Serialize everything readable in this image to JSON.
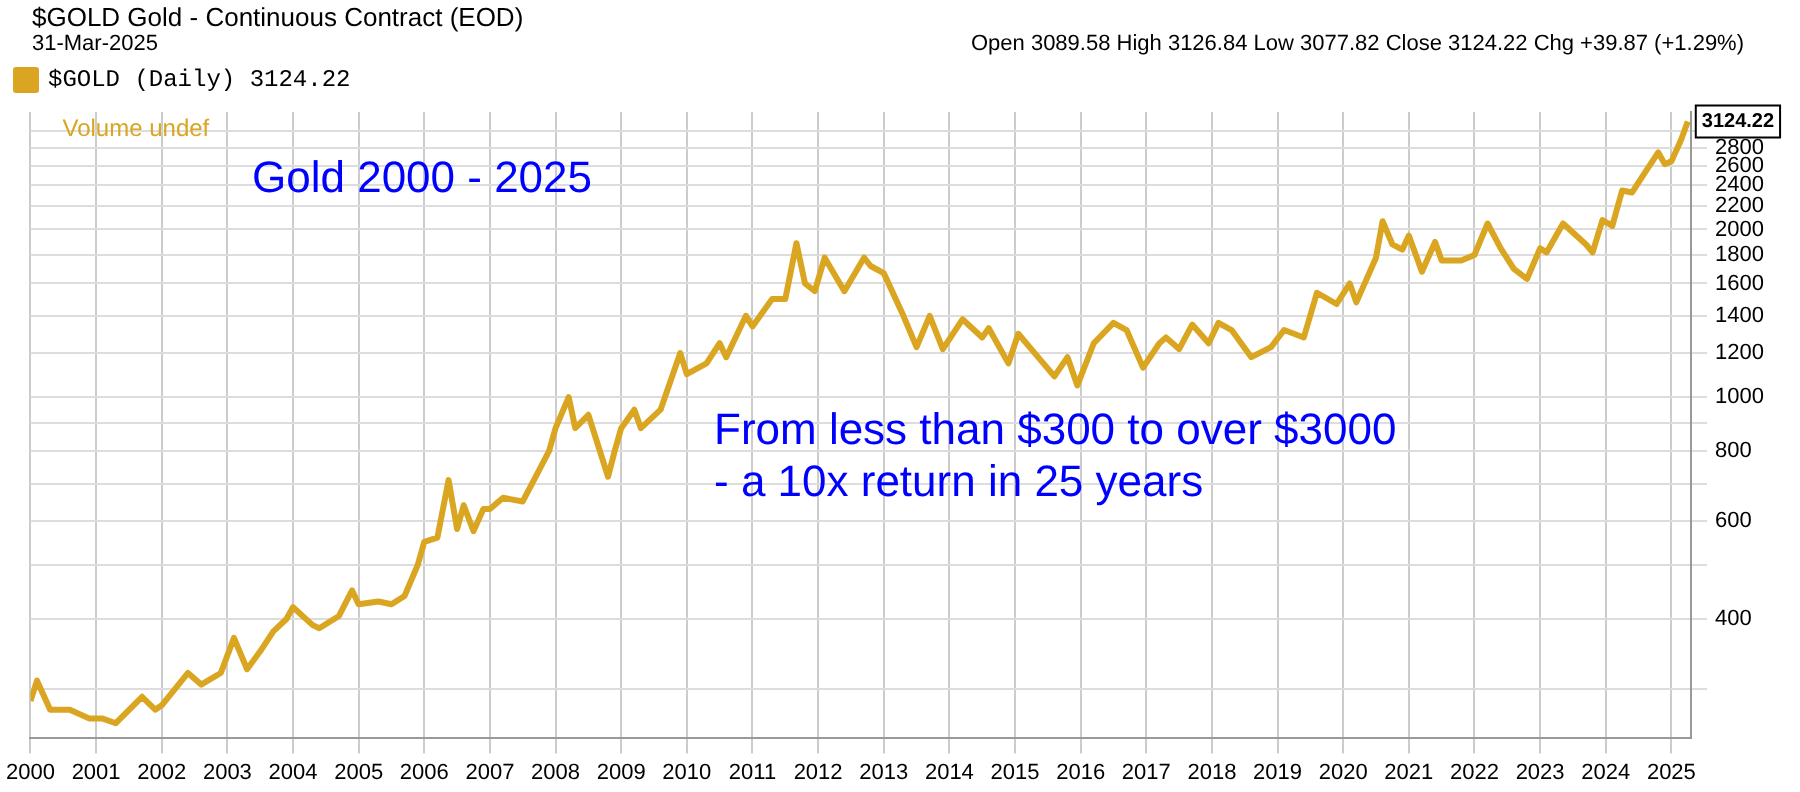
{
  "chart_data": {
    "type": "line",
    "title": "$GOLD Gold - Continuous Contract (EOD)",
    "subtitle": "31-Mar-2025",
    "annotations": [
      "Open 3089.58 High 3126.84 Low 3077.82 Close 3124.22 Chg +39.87 (+1.29%)",
      "Volume undef",
      "Gold 2000 - 2025",
      "From less than $300 to over $3000\n- a 10x return in 25 years",
      {
        "text": "3124.22",
        "x": 2025.25,
        "y": 3124.22
      }
    ],
    "log": "y",
    "grid": true,
    "legend": "top left",
    "marker": "none",
    "line_style": "solid",
    "xlim": [
      2000,
      2025.3
    ],
    "xticks": [
      2000,
      2001,
      2002,
      2003,
      2004,
      2005,
      2006,
      2007,
      2008,
      2009,
      2010,
      2011,
      2012,
      2013,
      2014,
      2015,
      2016,
      2017,
      2018,
      2019,
      2020,
      2021,
      2022,
      2023,
      2024,
      2025
    ],
    "ylim": [
      245,
      3250
    ],
    "yticks": [
      {
        "value": 300,
        "label": null
      },
      400,
      {
        "value": 500,
        "label": null
      },
      600,
      {
        "value": 700,
        "label": null
      },
      800,
      {
        "value": 900,
        "label": null
      },
      1000,
      1200,
      1400,
      1600,
      1800,
      2000,
      2200,
      2400,
      2600,
      2800,
      {
        "value": 3000,
        "label": null
      }
    ],
    "series": [
      {
        "name": "$GOLD (Daily) 3124.22",
        "color": "#daa520",
        "x": [
          2000.0,
          2000.1,
          2000.3,
          2000.6,
          2000.9,
          2001.1,
          2001.3,
          2001.7,
          2001.9,
          2002.0,
          2002.4,
          2002.6,
          2002.9,
          2003.1,
          2003.3,
          2003.5,
          2003.7,
          2003.9,
          2004.0,
          2004.3,
          2004.4,
          2004.7,
          2004.9,
          2005.0,
          2005.3,
          2005.5,
          2005.7,
          2005.9,
          2006.0,
          2006.2,
          2006.37,
          2006.5,
          2006.6,
          2006.75,
          2006.9,
          2007.0,
          2007.2,
          2007.5,
          2007.75,
          2007.9,
          2008.0,
          2008.2,
          2008.3,
          2008.5,
          2008.8,
          2008.9,
          2009.0,
          2009.2,
          2009.3,
          2009.6,
          2009.9,
          2010.0,
          2010.3,
          2010.5,
          2010.6,
          2010.9,
          2011.0,
          2011.3,
          2011.5,
          2011.67,
          2011.8,
          2011.95,
          2012.1,
          2012.4,
          2012.7,
          2012.8,
          2013.0,
          2013.3,
          2013.5,
          2013.7,
          2013.9,
          2014.2,
          2014.5,
          2014.6,
          2014.9,
          2015.05,
          2015.3,
          2015.6,
          2015.8,
          2015.95,
          2016.2,
          2016.5,
          2016.7,
          2016.95,
          2017.2,
          2017.3,
          2017.5,
          2017.7,
          2017.95,
          2018.1,
          2018.3,
          2018.6,
          2018.9,
          2019.1,
          2019.4,
          2019.6,
          2019.9,
          2020.1,
          2020.2,
          2020.5,
          2020.6,
          2020.75,
          2020.9,
          2021.0,
          2021.2,
          2021.4,
          2021.5,
          2021.8,
          2022.0,
          2022.2,
          2022.4,
          2022.6,
          2022.8,
          2023.0,
          2023.1,
          2023.35,
          2023.7,
          2023.8,
          2023.95,
          2024.1,
          2024.25,
          2024.4,
          2024.5,
          2024.8,
          2024.9,
          2025.0,
          2025.15,
          2025.25
        ],
        "values": [
          285,
          310,
          275,
          275,
          265,
          265,
          260,
          290,
          275,
          280,
          320,
          305,
          320,
          370,
          325,
          350,
          380,
          400,
          420,
          390,
          385,
          405,
          450,
          425,
          430,
          425,
          440,
          500,
          550,
          560,
          710,
          580,
          640,
          575,
          630,
          630,
          660,
          650,
          740,
          800,
          880,
          1000,
          880,
          930,
          720,
          800,
          880,
          950,
          880,
          950,
          1200,
          1100,
          1150,
          1250,
          1180,
          1400,
          1340,
          1500,
          1500,
          1890,
          1600,
          1550,
          1780,
          1550,
          1780,
          1720,
          1670,
          1400,
          1230,
          1400,
          1220,
          1380,
          1280,
          1330,
          1150,
          1300,
          1200,
          1090,
          1180,
          1050,
          1250,
          1360,
          1320,
          1130,
          1250,
          1280,
          1220,
          1350,
          1250,
          1360,
          1320,
          1180,
          1230,
          1320,
          1280,
          1540,
          1470,
          1600,
          1480,
          1780,
          2070,
          1880,
          1840,
          1950,
          1680,
          1900,
          1760,
          1760,
          1800,
          2050,
          1850,
          1700,
          1630,
          1850,
          1820,
          2050,
          1880,
          1820,
          2080,
          2030,
          2350,
          2330,
          2430,
          2750,
          2620,
          2650,
          2900,
          3124.22
        ]
      }
    ]
  }
}
